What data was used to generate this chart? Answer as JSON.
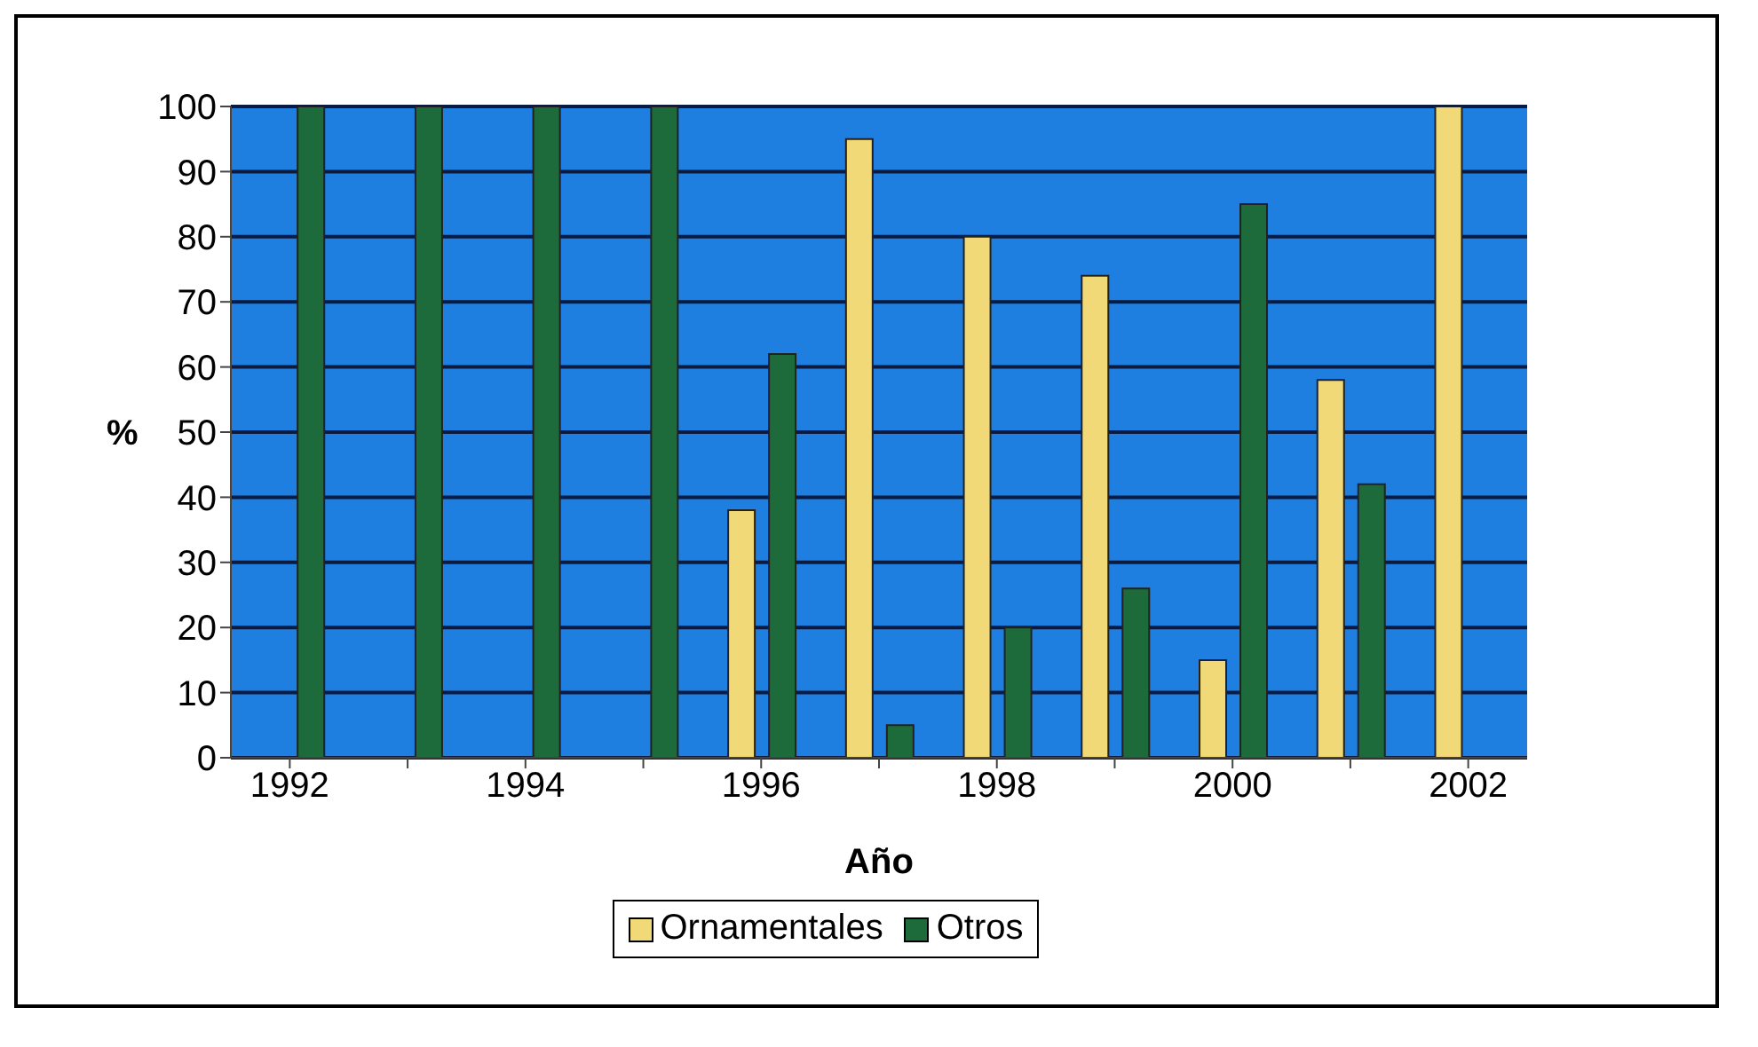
{
  "chart_data": {
    "type": "bar",
    "xlabel": "Año",
    "ylabel": "%",
    "categories": [
      "1992",
      null,
      "1994",
      null,
      "1996",
      null,
      "1998",
      null,
      "2000",
      null,
      "2002"
    ],
    "series": [
      {
        "name": "Ornamentales",
        "color": "#f2d978",
        "values": [
          0,
          0,
          0,
          0,
          38,
          95,
          80,
          74,
          15,
          58,
          100
        ]
      },
      {
        "name": "Otros",
        "color": "#1d6b3a",
        "values": [
          100,
          100,
          100,
          100,
          62,
          5,
          20,
          26,
          85,
          42,
          0
        ]
      }
    ],
    "ylim": [
      0,
      100
    ],
    "yticks": [
      0,
      10,
      20,
      30,
      40,
      50,
      60,
      70,
      80,
      90,
      100
    ],
    "grid": "y",
    "legend": "bottom"
  }
}
